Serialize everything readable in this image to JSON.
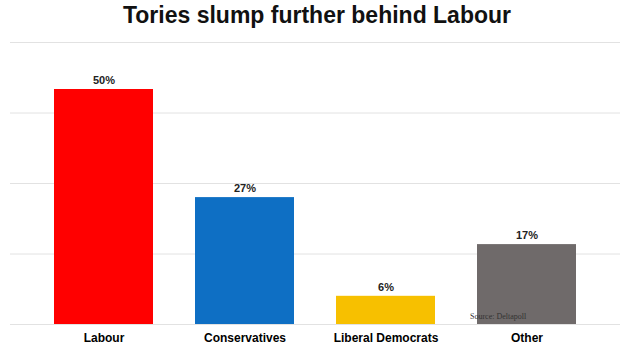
{
  "chart_data": {
    "type": "bar",
    "title": "Tories slump further behind Labour",
    "categories": [
      "Labour",
      "Conservatives",
      "Liberal Democrats",
      "Other"
    ],
    "values": [
      50,
      27,
      6,
      17
    ],
    "value_labels": [
      "50%",
      "27%",
      "6%",
      "17%"
    ],
    "colors": [
      "#ff0000",
      "#0e6fc4",
      "#f7c000",
      "#6f6a6a"
    ],
    "ylim": [
      0,
      60
    ],
    "yticks": [
      0,
      15,
      30,
      45,
      60
    ],
    "grid": true,
    "data_labels": true,
    "tick_labels": "x",
    "annotation": "Source: Deltapoll"
  }
}
